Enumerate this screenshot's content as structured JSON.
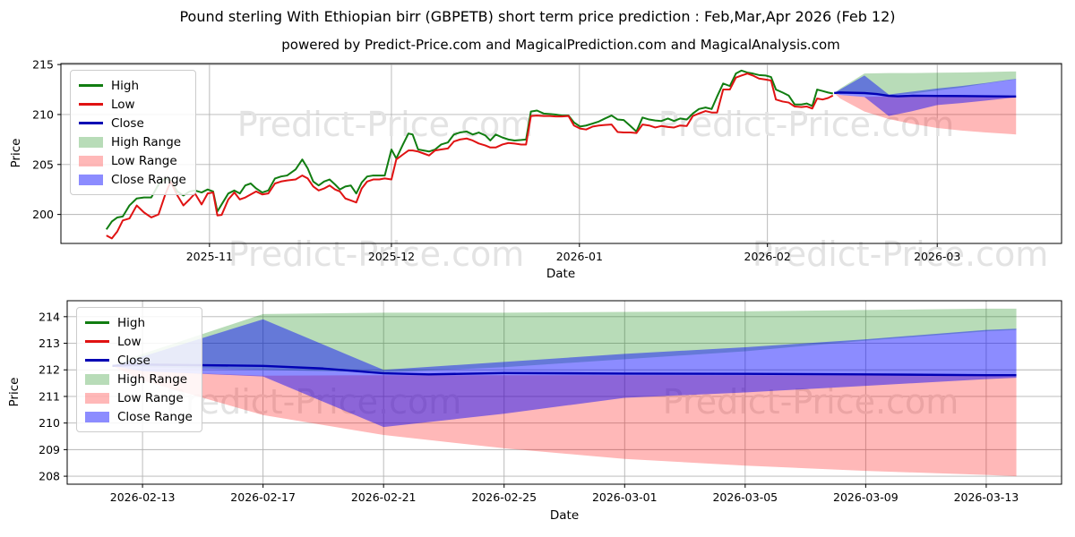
{
  "title": "Pound sterling With Ethiopian birr (GBPETB) short term price prediction : Feb,Mar,Apr 2026 (Feb 12)",
  "subtitle": "powered by Predict-Price.com and MagicalPrediction.com and MagicalAnalysis.com",
  "watermark_text": "Predict-Price.com",
  "colors": {
    "high": "#117d11",
    "low": "#e01212",
    "close": "#0000b4",
    "high_range": "#008000",
    "low_range": "#ff0000",
    "close_range": "#0000ff",
    "grid": "#b4b4b4",
    "axis": "#000000",
    "watermark": "#e3e3e3",
    "background": "#ffffff"
  },
  "legend": {
    "items": [
      {
        "label": "High",
        "kind": "line",
        "color_key": "high"
      },
      {
        "label": "Low",
        "kind": "line",
        "color_key": "low"
      },
      {
        "label": "Close",
        "kind": "line",
        "color_key": "close"
      },
      {
        "label": "High Range",
        "kind": "patch",
        "color_key": "high_range",
        "alpha": 0.28
      },
      {
        "label": "Low Range",
        "kind": "patch",
        "color_key": "low_range",
        "alpha": 0.28
      },
      {
        "label": "Close Range",
        "kind": "patch",
        "color_key": "close_range",
        "alpha": 0.45
      }
    ]
  },
  "chart_data": [
    {
      "id": "main",
      "type": "line",
      "panel": "top",
      "xlabel": "Date",
      "ylabel": "Price",
      "x_unit": "days since 2025-10-15",
      "xlim": [
        -7.5,
        157.5
      ],
      "ylim": [
        197.1,
        215.1
      ],
      "grid": true,
      "xticks": [
        {
          "t": 17,
          "label": "2025-11"
        },
        {
          "t": 47,
          "label": "2025-12"
        },
        {
          "t": 78,
          "label": "2026-01"
        },
        {
          "t": 109,
          "label": "2026-02"
        },
        {
          "t": 137,
          "label": "2026-03"
        }
      ],
      "yticks": [
        200,
        205,
        210,
        215
      ],
      "history": {
        "t": [
          0,
          0.9,
          1.8,
          2.7,
          3.8,
          5.0,
          6.2,
          7.4,
          8.6,
          9.7,
          10.6,
          11.7,
          12.7,
          13.7,
          14.6,
          15.7,
          16.7,
          17.6,
          18.3,
          19.0,
          20.1,
          21.1,
          22.0,
          22.9,
          23.8,
          24.7,
          25.7,
          26.7,
          27.8,
          28.8,
          29.8,
          31.2,
          32.3,
          33.2,
          34.1,
          35.0,
          35.9,
          36.8,
          37.7,
          38.5,
          39.4,
          40.3,
          41.2,
          42.1,
          43.0,
          44.0,
          45.0,
          45.9,
          47.0,
          47.8,
          48.9,
          49.8,
          50.5,
          51.4,
          52.3,
          53.2,
          54.2,
          55.2,
          56.3,
          57.3,
          58.3,
          59.4,
          60.4,
          61.4,
          62.5,
          63.3,
          64.2,
          65.3,
          66.3,
          67.3,
          68.4,
          69.2,
          70.0,
          71.0,
          72.1,
          73.1,
          74.1,
          75.1,
          76.2,
          77.1,
          78.1,
          79.1,
          80.2,
          81.2,
          82.2,
          83.3,
          84.3,
          85.3,
          86.4,
          87.4,
          88.4,
          89.5,
          90.5,
          91.5,
          92.6,
          93.6,
          94.6,
          95.7,
          96.7,
          97.7,
          98.8,
          99.8,
          100.7,
          101.7,
          102.8,
          103.8,
          104.7,
          105.7,
          106.6,
          107.6,
          108.7,
          109.6,
          110.4,
          111.5,
          112.5,
          113.5,
          114.6,
          115.5,
          116.4,
          117.2,
          118.1,
          119.0,
          119.8
        ],
        "high": [
          198.5,
          199.3,
          199.7,
          199.8,
          200.9,
          201.6,
          201.7,
          201.7,
          203.0,
          203.6,
          203.4,
          202.3,
          201.9,
          202.3,
          202.4,
          202.2,
          202.5,
          202.3,
          200.3,
          201.0,
          202.1,
          202.4,
          202.1,
          202.9,
          203.1,
          202.6,
          202.2,
          202.4,
          203.6,
          203.8,
          203.9,
          204.5,
          205.5,
          204.6,
          203.3,
          202.9,
          203.3,
          203.5,
          203.0,
          202.5,
          202.8,
          202.9,
          202.1,
          203.2,
          203.8,
          203.9,
          203.9,
          203.9,
          206.5,
          205.6,
          207.0,
          208.1,
          208.0,
          206.5,
          206.4,
          206.3,
          206.5,
          207.0,
          207.2,
          208.0,
          208.2,
          208.3,
          208.0,
          208.2,
          207.9,
          207.4,
          208.0,
          207.7,
          207.5,
          207.4,
          207.45,
          207.5,
          210.3,
          210.4,
          210.1,
          210.05,
          210.0,
          209.9,
          209.9,
          209.2,
          208.8,
          208.9,
          209.1,
          209.3,
          209.6,
          209.9,
          209.5,
          209.45,
          208.85,
          208.3,
          209.7,
          209.5,
          209.4,
          209.35,
          209.6,
          209.35,
          209.6,
          209.5,
          210.1,
          210.55,
          210.7,
          210.55,
          211.8,
          213.1,
          212.85,
          214.1,
          214.4,
          214.2,
          214.1,
          213.95,
          213.9,
          213.75,
          212.5,
          212.2,
          211.9,
          211.0,
          211.0,
          211.1,
          210.85,
          212.5,
          212.35,
          212.2,
          212.1
        ],
        "low": [
          197.9,
          197.6,
          198.3,
          199.4,
          199.6,
          200.9,
          200.2,
          199.7,
          200.0,
          202.0,
          203.3,
          201.9,
          200.9,
          201.5,
          202.1,
          201.0,
          202.1,
          202.2,
          199.9,
          199.95,
          201.5,
          202.2,
          201.5,
          201.7,
          202.0,
          202.3,
          202.0,
          202.1,
          203.1,
          203.3,
          203.4,
          203.5,
          203.9,
          203.6,
          202.8,
          202.4,
          202.6,
          202.9,
          202.5,
          202.3,
          201.6,
          201.4,
          201.2,
          202.6,
          203.3,
          203.5,
          203.5,
          203.6,
          203.5,
          205.5,
          206.0,
          206.4,
          206.4,
          206.3,
          206.1,
          205.9,
          206.4,
          206.5,
          206.6,
          207.3,
          207.5,
          207.6,
          207.4,
          207.1,
          206.9,
          206.7,
          206.7,
          207.0,
          207.15,
          207.1,
          207.0,
          207.0,
          209.85,
          209.9,
          209.85,
          209.85,
          209.8,
          209.8,
          209.85,
          208.9,
          208.6,
          208.5,
          208.8,
          208.9,
          208.95,
          209.0,
          208.25,
          208.2,
          208.2,
          208.15,
          209.0,
          208.9,
          208.7,
          208.85,
          208.75,
          208.7,
          208.9,
          208.85,
          209.85,
          210.1,
          210.35,
          210.2,
          210.2,
          212.5,
          212.5,
          213.7,
          213.9,
          214.1,
          213.9,
          213.6,
          213.5,
          213.4,
          211.5,
          211.3,
          211.2,
          210.8,
          210.75,
          210.8,
          210.6,
          211.6,
          211.5,
          211.65,
          211.9
        ]
      },
      "forecast_close": {
        "t": [
          120,
          121,
          125,
          127,
          129,
          130.5,
          133,
          137,
          141,
          145,
          149,
          150
        ],
        "values": [
          212.15,
          212.2,
          212.15,
          212.05,
          211.87,
          211.83,
          211.88,
          211.86,
          211.85,
          211.83,
          211.8,
          211.8
        ]
      },
      "bands": [
        {
          "name": "High Range",
          "color_key": "high_range",
          "alpha": 0.28,
          "t": [
            120,
            121,
            125,
            129,
            133,
            137,
            141,
            145,
            149,
            150
          ],
          "upper": [
            212.15,
            212.6,
            214.1,
            214.15,
            214.15,
            214.18,
            214.2,
            214.25,
            214.3,
            214.3
          ],
          "lower": [
            212.15,
            212.1,
            212.0,
            211.9,
            212.1,
            212.4,
            212.7,
            213.1,
            213.45,
            213.5
          ]
        },
        {
          "name": "Low Range",
          "color_key": "low_range",
          "alpha": 0.28,
          "t": [
            120,
            121,
            125,
            129,
            133,
            137,
            141,
            145,
            149,
            150
          ],
          "upper": [
            212.15,
            211.95,
            211.78,
            211.8,
            211.8,
            211.8,
            211.8,
            211.8,
            211.78,
            211.75
          ],
          "lower": [
            212.15,
            211.6,
            210.3,
            209.55,
            209.05,
            208.65,
            208.4,
            208.2,
            208.05,
            208.0
          ]
        },
        {
          "name": "Close Range",
          "color_key": "close_range",
          "alpha": 0.45,
          "t": [
            120,
            121,
            125,
            129,
            133,
            137,
            141,
            145,
            149,
            150
          ],
          "upper": [
            212.15,
            212.5,
            213.9,
            212.0,
            212.3,
            212.6,
            212.85,
            213.15,
            213.5,
            213.55
          ],
          "lower": [
            212.15,
            211.95,
            211.75,
            209.85,
            210.35,
            210.95,
            211.15,
            211.4,
            211.65,
            211.7
          ]
        }
      ]
    },
    {
      "id": "forecast",
      "type": "area",
      "panel": "bottom",
      "xlabel": "Date",
      "ylabel": "Price",
      "x_unit": "days since 2025-10-15",
      "xlim": [
        118.5,
        151.5
      ],
      "ylim": [
        207.7,
        214.6
      ],
      "grid": true,
      "xticks": [
        {
          "t": 121,
          "label": "2026-02-13"
        },
        {
          "t": 125,
          "label": "2026-02-17"
        },
        {
          "t": 129,
          "label": "2026-02-21"
        },
        {
          "t": 133,
          "label": "2026-02-25"
        },
        {
          "t": 137,
          "label": "2026-03-01"
        },
        {
          "t": 141,
          "label": "2026-03-05"
        },
        {
          "t": 145,
          "label": "2026-03-09"
        },
        {
          "t": 149,
          "label": "2026-03-13"
        }
      ],
      "yticks": [
        208,
        209,
        210,
        211,
        212,
        213,
        214
      ],
      "forecast_close": {
        "t": [
          120,
          121,
          125,
          127,
          129,
          130.5,
          133,
          137,
          141,
          145,
          149,
          150
        ],
        "values": [
          212.15,
          212.2,
          212.15,
          212.05,
          211.87,
          211.83,
          211.88,
          211.86,
          211.85,
          211.83,
          211.8,
          211.8
        ]
      },
      "bands": [
        {
          "name": "High Range",
          "color_key": "high_range",
          "alpha": 0.28,
          "t": [
            120,
            121,
            125,
            129,
            133,
            137,
            141,
            145,
            149,
            150
          ],
          "upper": [
            212.15,
            212.6,
            214.1,
            214.15,
            214.15,
            214.18,
            214.2,
            214.25,
            214.3,
            214.3
          ],
          "lower": [
            212.15,
            212.1,
            212.0,
            211.9,
            212.1,
            212.4,
            212.7,
            213.1,
            213.45,
            213.5
          ]
        },
        {
          "name": "Low Range",
          "color_key": "low_range",
          "alpha": 0.28,
          "t": [
            120,
            121,
            125,
            129,
            133,
            137,
            141,
            145,
            149,
            150
          ],
          "upper": [
            212.15,
            211.95,
            211.78,
            211.8,
            211.8,
            211.8,
            211.8,
            211.8,
            211.78,
            211.75
          ],
          "lower": [
            212.15,
            211.6,
            210.3,
            209.55,
            209.05,
            208.65,
            208.4,
            208.2,
            208.05,
            208.0
          ]
        },
        {
          "name": "Close Range",
          "color_key": "close_range",
          "alpha": 0.45,
          "t": [
            120,
            121,
            125,
            129,
            133,
            137,
            141,
            145,
            149,
            150
          ],
          "upper": [
            212.15,
            212.5,
            213.9,
            212.0,
            212.3,
            212.6,
            212.85,
            213.15,
            213.5,
            213.55
          ],
          "lower": [
            212.15,
            211.95,
            211.75,
            209.85,
            210.35,
            210.95,
            211.15,
            211.4,
            211.65,
            211.7
          ]
        }
      ]
    }
  ]
}
